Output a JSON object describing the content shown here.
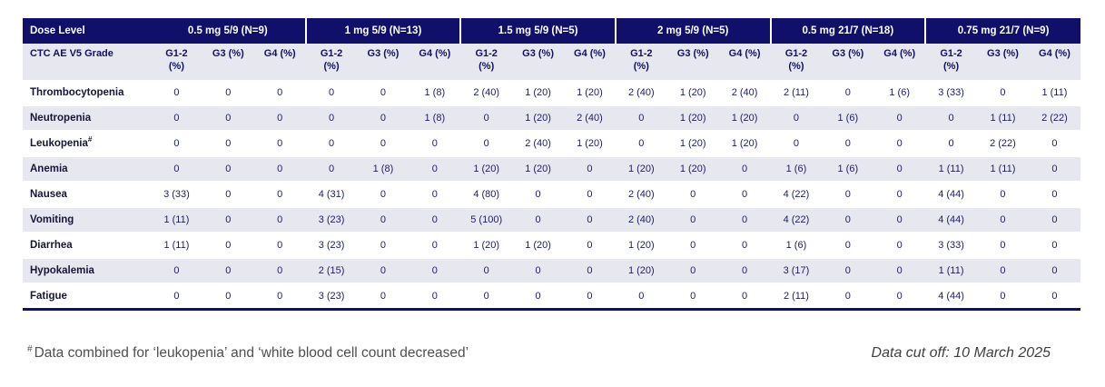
{
  "colors": {
    "header_navy": "#10106a",
    "stripe_gray": "#e7e7ef",
    "cell_text_navy": "#1e1e5e",
    "row_label_text": "#16163a",
    "footnote_gray": "#4f4f4f"
  },
  "table": {
    "header": {
      "dose_level_label": "Dose Level",
      "grade_label": "CTC AE V5 Grade",
      "groups": [
        {
          "label": "0.5 mg 5/9 (N=9)"
        },
        {
          "label": "1 mg 5/9 (N=13)"
        },
        {
          "label": "1.5 mg 5/9 (N=5)"
        },
        {
          "label": "2 mg 5/9 (N=5)"
        },
        {
          "label": "0.5 mg 21/7 (N=18)"
        },
        {
          "label": "0.75 mg 21/7 (N=9)"
        }
      ],
      "grade_columns": [
        "G1-2 (%)",
        "G3 (%)",
        "G4 (%)"
      ]
    },
    "rows": [
      {
        "label": "Thrombocytopenia",
        "sup": "",
        "values": [
          "0",
          "0",
          "0",
          "0",
          "0",
          "1 (8)",
          "2 (40)",
          "1 (20)",
          "1 (20)",
          "2 (40)",
          "1 (20)",
          "2 (40)",
          "2 (11)",
          "0",
          "1 (6)",
          "3 (33)",
          "0",
          "1 (11)"
        ]
      },
      {
        "label": "Neutropenia",
        "sup": "",
        "values": [
          "0",
          "0",
          "0",
          "0",
          "0",
          "1 (8)",
          "0",
          "1 (20)",
          "2 (40)",
          "0",
          "1 (20)",
          "1 (20)",
          "0",
          "1 (6)",
          "0",
          "0",
          "1 (11)",
          "2 (22)"
        ]
      },
      {
        "label": "Leukopenia",
        "sup": "#",
        "values": [
          "0",
          "0",
          "0",
          "0",
          "0",
          "0",
          "0",
          "2 (40)",
          "1 (20)",
          "0",
          "1 (20)",
          "1 (20)",
          "0",
          "0",
          "0",
          "0",
          "2 (22)",
          "0"
        ]
      },
      {
        "label": "Anemia",
        "sup": "",
        "values": [
          "0",
          "0",
          "0",
          "0",
          "1 (8)",
          "0",
          "1 (20)",
          "1 (20)",
          "0",
          "1 (20)",
          "1 (20)",
          "0",
          "1 (6)",
          "1 (6)",
          "0",
          "1 (11)",
          "1 (11)",
          "0"
        ]
      },
      {
        "label": "Nausea",
        "sup": "",
        "values": [
          "3 (33)",
          "0",
          "0",
          "4 (31)",
          "0",
          "0",
          "4 (80)",
          "0",
          "0",
          "2 (40)",
          "0",
          "0",
          "4 (22)",
          "0",
          "0",
          "4 (44)",
          "0",
          "0"
        ]
      },
      {
        "label": "Vomiting",
        "sup": "",
        "values": [
          "1 (11)",
          "0",
          "0",
          "3 (23)",
          "0",
          "0",
          "5 (100)",
          "0",
          "0",
          "2 (40)",
          "0",
          "0",
          "4 (22)",
          "0",
          "0",
          "4 (44)",
          "0",
          "0"
        ]
      },
      {
        "label": "Diarrhea",
        "sup": "",
        "values": [
          "1 (11)",
          "0",
          "0",
          "3 (23)",
          "0",
          "0",
          "1 (20)",
          "1 (20)",
          "0",
          "1 (20)",
          "0",
          "0",
          "1 (6)",
          "0",
          "0",
          "3 (33)",
          "0",
          "0"
        ]
      },
      {
        "label": "Hypokalemia",
        "sup": "",
        "values": [
          "0",
          "0",
          "0",
          "2 (15)",
          "0",
          "0",
          "0",
          "0",
          "0",
          "1 (20)",
          "0",
          "0",
          "3 (17)",
          "0",
          "0",
          "1 (11)",
          "0",
          "0"
        ]
      },
      {
        "label": "Fatigue",
        "sup": "",
        "values": [
          "0",
          "0",
          "0",
          "3 (23)",
          "0",
          "0",
          "0",
          "0",
          "0",
          "0",
          "0",
          "0",
          "2 (11)",
          "0",
          "0",
          "4 (44)",
          "0",
          "0"
        ]
      }
    ]
  },
  "footer": {
    "footnote_sup": "#",
    "footnote_text": "Data combined for ‘leukopenia’ and ‘white blood cell count decreased’",
    "data_cutoff": "Data cut off: 10 March 2025"
  }
}
